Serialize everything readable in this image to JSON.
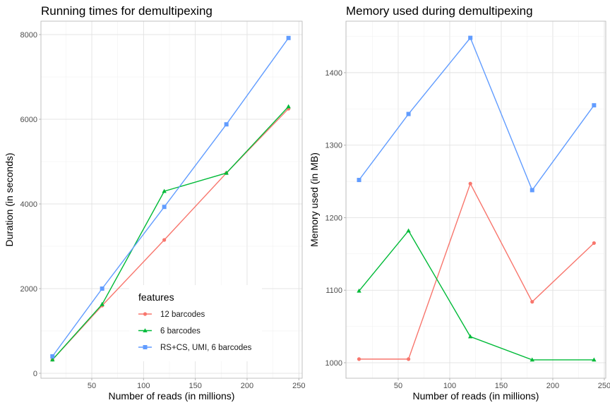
{
  "legend": {
    "title": "features",
    "placement": "inside-bottom-left",
    "entries": [
      {
        "label": "12 barcodes",
        "color": "#F8766D",
        "shape": "circle"
      },
      {
        "label": "6 barcodes",
        "color": "#00BA38",
        "shape": "triangle"
      },
      {
        "label": "RS+CS, UMI, 6 barcodes",
        "color": "#619CFF",
        "shape": "square"
      }
    ]
  },
  "chart_data": [
    {
      "type": "line",
      "title": "Running times for demultipexing",
      "xlabel": "Number of reads (in millions)",
      "ylabel": "Duration (in seconds)",
      "x": [
        12,
        60,
        120,
        180,
        240
      ],
      "xlim": [
        0.9,
        253.2
      ],
      "ylim": [
        -117,
        8317
      ],
      "xticks": [
        "50",
        "100",
        "150",
        "200",
        "250"
      ],
      "yticks": [
        "0",
        "2000",
        "4000",
        "6000",
        "8000"
      ],
      "grid": true,
      "series": [
        {
          "name": "12 barcodes",
          "values": [
            320,
            1600,
            3150,
            4730,
            6250
          ]
        },
        {
          "name": "6 barcodes",
          "values": [
            320,
            1630,
            4300,
            4730,
            6300
          ]
        },
        {
          "name": "RS+CS, UMI, 6 barcodes",
          "values": [
            400,
            2000,
            3930,
            5880,
            7920
          ]
        }
      ]
    },
    {
      "type": "line",
      "title": "Memory used during demultipexing",
      "xlabel": "Number of reads (in millions)",
      "ylabel": "Memory used (in MB)",
      "x": [
        12,
        60,
        120,
        180,
        240
      ],
      "xlim": [
        -0.7,
        251.4
      ],
      "ylim": [
        978.6,
        1471
      ],
      "xticks": [
        "50",
        "100",
        "150",
        "200",
        "250"
      ],
      "yticks": [
        "1000",
        "1100",
        "1200",
        "1300",
        "1400"
      ],
      "grid": true,
      "series": [
        {
          "name": "12 barcodes",
          "values": [
            1005,
            1005,
            1247,
            1084,
            1165
          ]
        },
        {
          "name": "6 barcodes",
          "values": [
            1099,
            1182,
            1036,
            1004,
            1004
          ]
        },
        {
          "name": "RS+CS, UMI, 6 barcodes",
          "values": [
            1252,
            1343,
            1448,
            1238,
            1355
          ]
        }
      ]
    }
  ]
}
